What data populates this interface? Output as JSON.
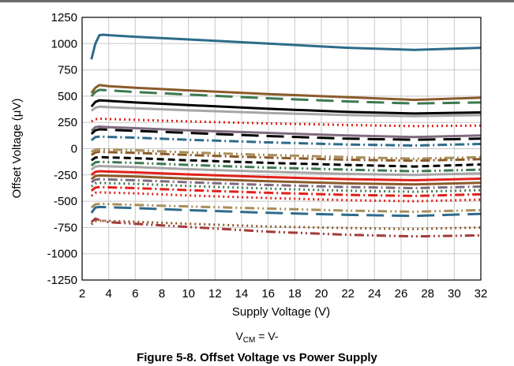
{
  "chart_data": {
    "type": "line",
    "xlabel": "Supply Voltage (V)",
    "ylabel": "Offset Voltage (μV)",
    "xlim": [
      2,
      32
    ],
    "ylim": [
      -1250,
      1250
    ],
    "x_ticks": [
      2,
      4,
      6,
      8,
      10,
      12,
      14,
      16,
      18,
      20,
      22,
      24,
      26,
      28,
      30,
      32
    ],
    "y_ticks": [
      1250,
      1000,
      750,
      500,
      250,
      0,
      -250,
      -500,
      -750,
      -1000,
      -1250
    ],
    "grid": true,
    "legend": "none",
    "series": [
      {
        "color": "#2e6b8a",
        "dash": "solid",
        "x": [
          2.7,
          3.0,
          3.3,
          3.6,
          4,
          6,
          10,
          16,
          22,
          27,
          32
        ],
        "values": [
          850,
          1000,
          1080,
          1085,
          1080,
          1065,
          1040,
          1000,
          960,
          940,
          960
        ]
      },
      {
        "color": "#8b5a2b",
        "dash": "solid",
        "x": [
          2.7,
          3.0,
          3.3,
          4,
          6,
          10,
          16,
          22,
          27,
          32
        ],
        "values": [
          530,
          580,
          605,
          595,
          580,
          555,
          520,
          490,
          465,
          485
        ]
      },
      {
        "color": "#3c7a4f",
        "dash": "long-dash",
        "x": [
          2.7,
          3.0,
          3.3,
          4,
          6,
          10,
          16,
          22,
          27,
          32
        ],
        "values": [
          500,
          540,
          560,
          555,
          540,
          515,
          480,
          450,
          430,
          440
        ]
      },
      {
        "color": "#000000",
        "dash": "solid",
        "x": [
          2.7,
          3.0,
          3.3,
          4,
          6,
          10,
          16,
          22,
          27,
          32
        ],
        "values": [
          400,
          445,
          460,
          455,
          440,
          415,
          380,
          350,
          335,
          345
        ]
      },
      {
        "color": "#a6a6a6",
        "dash": "solid",
        "x": [
          2.7,
          3.0,
          3.3,
          4,
          6,
          10,
          16,
          22,
          27,
          32
        ],
        "values": [
          360,
          390,
          400,
          395,
          385,
          365,
          340,
          320,
          310,
          320
        ]
      },
      {
        "color": "#e0201a",
        "dash": "dot",
        "x": [
          2.7,
          3.0,
          3.3,
          4,
          6,
          10,
          16,
          22,
          27,
          32
        ],
        "values": [
          260,
          280,
          285,
          282,
          275,
          260,
          240,
          225,
          215,
          220
        ]
      },
      {
        "color": "#7f6a7f",
        "dash": "solid",
        "x": [
          2.7,
          3.0,
          3.3,
          4,
          6,
          10,
          16,
          22,
          27,
          32
        ],
        "values": [
          170,
          205,
          210,
          205,
          195,
          175,
          150,
          125,
          110,
          125
        ]
      },
      {
        "color": "#000000",
        "dash": "long-dash",
        "x": [
          2.7,
          3.0,
          3.3,
          4,
          6,
          10,
          16,
          22,
          27,
          32
        ],
        "values": [
          140,
          175,
          185,
          180,
          170,
          150,
          120,
          95,
          85,
          95
        ]
      },
      {
        "color": "#2e6b8a",
        "dash": "dash-dot",
        "x": [
          2.7,
          3.0,
          3.3,
          4,
          6,
          10,
          16,
          22,
          27,
          32
        ],
        "values": [
          80,
          110,
          115,
          112,
          105,
          85,
          60,
          40,
          30,
          45
        ]
      },
      {
        "color": "#a88f5a",
        "dash": "dash-dot-dot",
        "x": [
          2.7,
          3.0,
          3.3,
          4,
          6,
          10,
          16,
          22,
          27,
          32
        ],
        "values": [
          -30,
          -10,
          -5,
          -8,
          -15,
          -35,
          -60,
          -80,
          -95,
          -80
        ]
      },
      {
        "color": "#8b5a2b",
        "dash": "dash-dot",
        "x": [
          2.7,
          3.0,
          3.3,
          4,
          6,
          10,
          16,
          22,
          27,
          32
        ],
        "values": [
          -60,
          -35,
          -30,
          -33,
          -40,
          -60,
          -85,
          -105,
          -115,
          -100
        ]
      },
      {
        "color": "#000000",
        "dash": "dash",
        "x": [
          2.7,
          3.0,
          3.3,
          4,
          6,
          10,
          16,
          22,
          27,
          32
        ],
        "values": [
          -110,
          -85,
          -80,
          -83,
          -90,
          -110,
          -135,
          -155,
          -170,
          -150
        ]
      },
      {
        "color": "#3c7a4f",
        "dash": "dash-dot-dot",
        "x": [
          2.7,
          3.0,
          3.3,
          4,
          6,
          10,
          16,
          22,
          27,
          32
        ],
        "values": [
          -160,
          -130,
          -125,
          -128,
          -135,
          -155,
          -180,
          -200,
          -215,
          -200
        ]
      },
      {
        "color": "#a6a6a6",
        "dash": "solid",
        "x": [
          2.7,
          3.0,
          3.3,
          4,
          6,
          10,
          16,
          22,
          27,
          32
        ],
        "values": [
          -200,
          -170,
          -165,
          -168,
          -175,
          -195,
          -220,
          -240,
          -250,
          -235
        ]
      },
      {
        "color": "#e0201a",
        "dash": "solid",
        "x": [
          2.7,
          3.0,
          3.3,
          4,
          6,
          10,
          16,
          22,
          27,
          32
        ],
        "values": [
          -250,
          -220,
          -215,
          -218,
          -225,
          -245,
          -270,
          -290,
          -300,
          -285
        ]
      },
      {
        "color": "#8b5a2b",
        "dash": "solid",
        "x": [
          2.7,
          3.0,
          3.3,
          4,
          6,
          10,
          16,
          22,
          27,
          32
        ],
        "values": [
          -290,
          -260,
          -255,
          -258,
          -265,
          -285,
          -310,
          -330,
          -340,
          -325
        ]
      },
      {
        "color": "#7f6a7f",
        "dash": "dash-dot",
        "x": [
          2.7,
          3.0,
          3.3,
          4,
          6,
          10,
          16,
          22,
          27,
          32
        ],
        "values": [
          -320,
          -295,
          -290,
          -293,
          -300,
          -320,
          -345,
          -365,
          -375,
          -360
        ]
      },
      {
        "color": "#3c7a4f",
        "dash": "dot",
        "x": [
          2.7,
          3.0,
          3.3,
          4,
          6,
          10,
          16,
          22,
          27,
          32
        ],
        "values": [
          -360,
          -330,
          -325,
          -328,
          -335,
          -355,
          -380,
          -400,
          -410,
          -395
        ]
      },
      {
        "color": "#e0201a",
        "dash": "dash-dot",
        "x": [
          2.7,
          3.0,
          3.3,
          4,
          6,
          10,
          16,
          22,
          27,
          32
        ],
        "values": [
          -400,
          -370,
          -365,
          -368,
          -375,
          -395,
          -420,
          -440,
          -450,
          -435
        ]
      },
      {
        "color": "#e0201a",
        "dash": "dot",
        "x": [
          2.7,
          3.0,
          3.3,
          4,
          6,
          10,
          16,
          22,
          27,
          32
        ],
        "values": [
          -450,
          -420,
          -415,
          -418,
          -425,
          -445,
          -470,
          -490,
          -500,
          -485
        ]
      },
      {
        "color": "#a88f5a",
        "dash": "dash-dot-dot",
        "x": [
          2.7,
          3.0,
          3.3,
          4,
          6,
          10,
          16,
          22,
          27,
          32
        ],
        "values": [
          -560,
          -530,
          -525,
          -528,
          -535,
          -550,
          -570,
          -590,
          -600,
          -585
        ]
      },
      {
        "color": "#2e6b8a",
        "dash": "long-dash",
        "x": [
          2.7,
          3.0,
          3.3,
          4,
          6,
          10,
          16,
          22,
          27,
          32
        ],
        "values": [
          -610,
          -560,
          -555,
          -558,
          -565,
          -585,
          -610,
          -630,
          -640,
          -620
        ]
      },
      {
        "color": "#8b5a2b",
        "dash": "dot",
        "x": [
          2.7,
          3.0,
          3.3,
          4,
          6,
          10,
          16,
          22,
          27,
          32
        ],
        "values": [
          -720,
          -690,
          -685,
          -688,
          -695,
          -715,
          -740,
          -755,
          -765,
          -750
        ]
      },
      {
        "color": "#a33a3a",
        "dash": "dash-dot-dot",
        "x": [
          2.7,
          3.0,
          3.3,
          4,
          6,
          10,
          16,
          22,
          27,
          32
        ],
        "values": [
          -700,
          -665,
          -680,
          -700,
          -715,
          -745,
          -790,
          -820,
          -835,
          -825
        ]
      }
    ]
  },
  "annotation": {
    "vcm_prefix": "V",
    "vcm_sub": "CM",
    "vcm_suffix": " = V-"
  },
  "caption": "Figure 5-8. Offset Voltage vs Power Supply"
}
